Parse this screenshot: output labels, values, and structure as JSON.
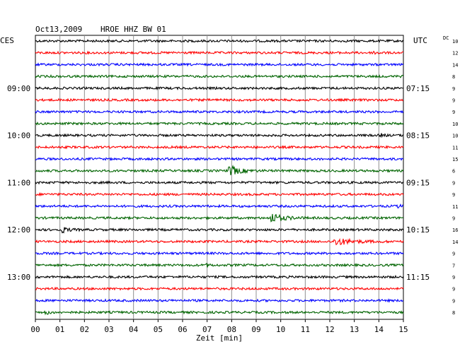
{
  "header": {
    "date": "Oct13,2009",
    "station": "HROE HHZ BW 01",
    "left_zone": "CES",
    "right_zone": "UTC",
    "dc_label": "DC"
  },
  "chart_data": {
    "type": "line",
    "title": "Oct13,2009   HROE HHZ BW 01",
    "xlabel": "Zeit [min]",
    "xlim": [
      0,
      15
    ],
    "x_ticks": [
      "00",
      "01",
      "02",
      "03",
      "04",
      "05",
      "06",
      "07",
      "08",
      "09",
      "10",
      "11",
      "12",
      "13",
      "14",
      "15"
    ],
    "trace_colors": [
      "#000000",
      "#ff0000",
      "#0000ff",
      "#006400"
    ],
    "left_hour_labels": [
      {
        "row": 4,
        "label": "09:00"
      },
      {
        "row": 8,
        "label": "10:00"
      },
      {
        "row": 12,
        "label": "11:00"
      },
      {
        "row": 16,
        "label": "12:00"
      },
      {
        "row": 20,
        "label": "13:00"
      }
    ],
    "right_hour_labels": [
      {
        "row": 4,
        "label": "07:15"
      },
      {
        "row": 8,
        "label": "08:15"
      },
      {
        "row": 12,
        "label": "09:15"
      },
      {
        "row": 16,
        "label": "10:15"
      },
      {
        "row": 20,
        "label": "11:15"
      }
    ],
    "dc_offsets": [
      "10",
      "12",
      "14",
      "8",
      "9",
      "9",
      "9",
      "10",
      "10",
      "11",
      "15",
      "6",
      "9",
      "9",
      "11",
      "9",
      "16",
      "14",
      "9",
      "7",
      "9",
      "9",
      "9",
      "8"
    ],
    "events": [
      {
        "row": 1,
        "minute": 13.8,
        "amplitude": 0.5,
        "duration": 0.4
      },
      {
        "row": 8,
        "minute": 14.1,
        "amplitude": 0.4,
        "duration": 0.3
      },
      {
        "row": 11,
        "minute": 7.9,
        "amplitude": 1.6,
        "duration": 1.0
      },
      {
        "row": 14,
        "minute": 14.8,
        "amplitude": 0.6,
        "duration": 0.2
      },
      {
        "row": 15,
        "minute": 9.6,
        "amplitude": 1.4,
        "duration": 1.2
      },
      {
        "row": 16,
        "minute": 1.0,
        "amplitude": 1.0,
        "duration": 0.7
      },
      {
        "row": 17,
        "minute": 12.2,
        "amplitude": 1.0,
        "duration": 1.8
      },
      {
        "row": 19,
        "minute": 7.0,
        "amplitude": 0.4,
        "duration": 0.3
      },
      {
        "row": 23,
        "minute": 0.4,
        "amplitude": 0.6,
        "duration": 0.4
      }
    ]
  }
}
